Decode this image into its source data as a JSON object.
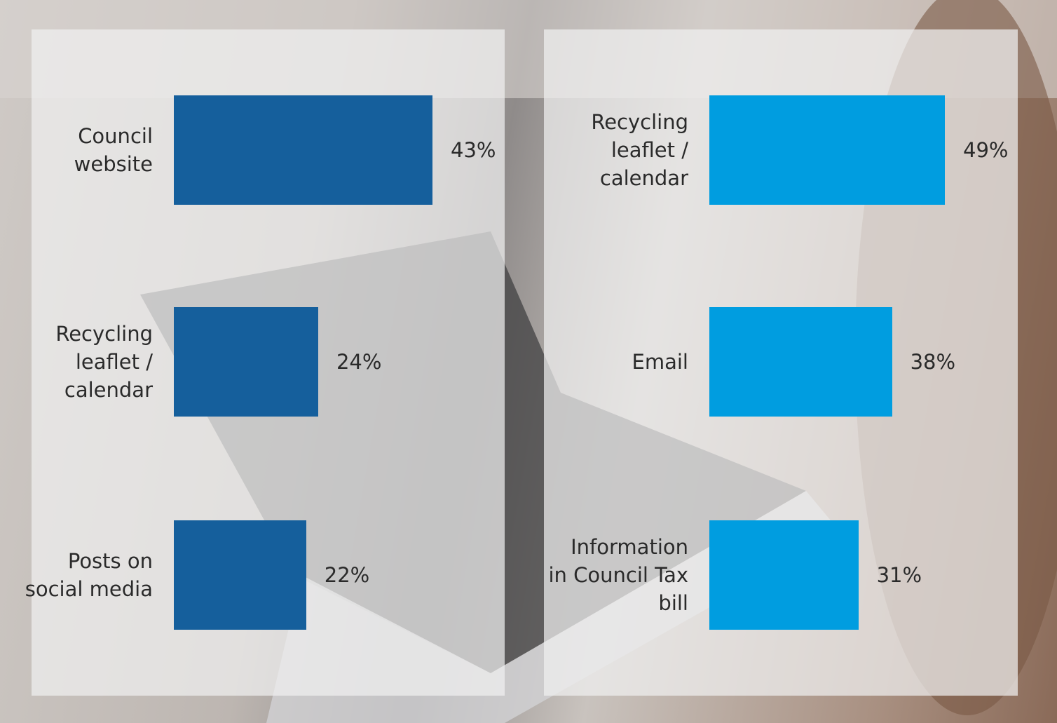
{
  "chart_data": [
    {
      "type": "bar",
      "orientation": "horizontal",
      "color": "#155f9c",
      "categories": [
        "Council website",
        "Recycling leaflet / calendar",
        "Posts on social media"
      ],
      "values": [
        43,
        24,
        22
      ],
      "value_labels": [
        "43%",
        "24%",
        "22%"
      ]
    },
    {
      "type": "bar",
      "orientation": "horizontal",
      "color": "#009de0",
      "categories": [
        "Recycling leaflet / calendar",
        "Email",
        "Information in Council Tax bill"
      ],
      "values": [
        49,
        38,
        31
      ],
      "value_labels": [
        "49%",
        "38%",
        "31%"
      ]
    }
  ]
}
